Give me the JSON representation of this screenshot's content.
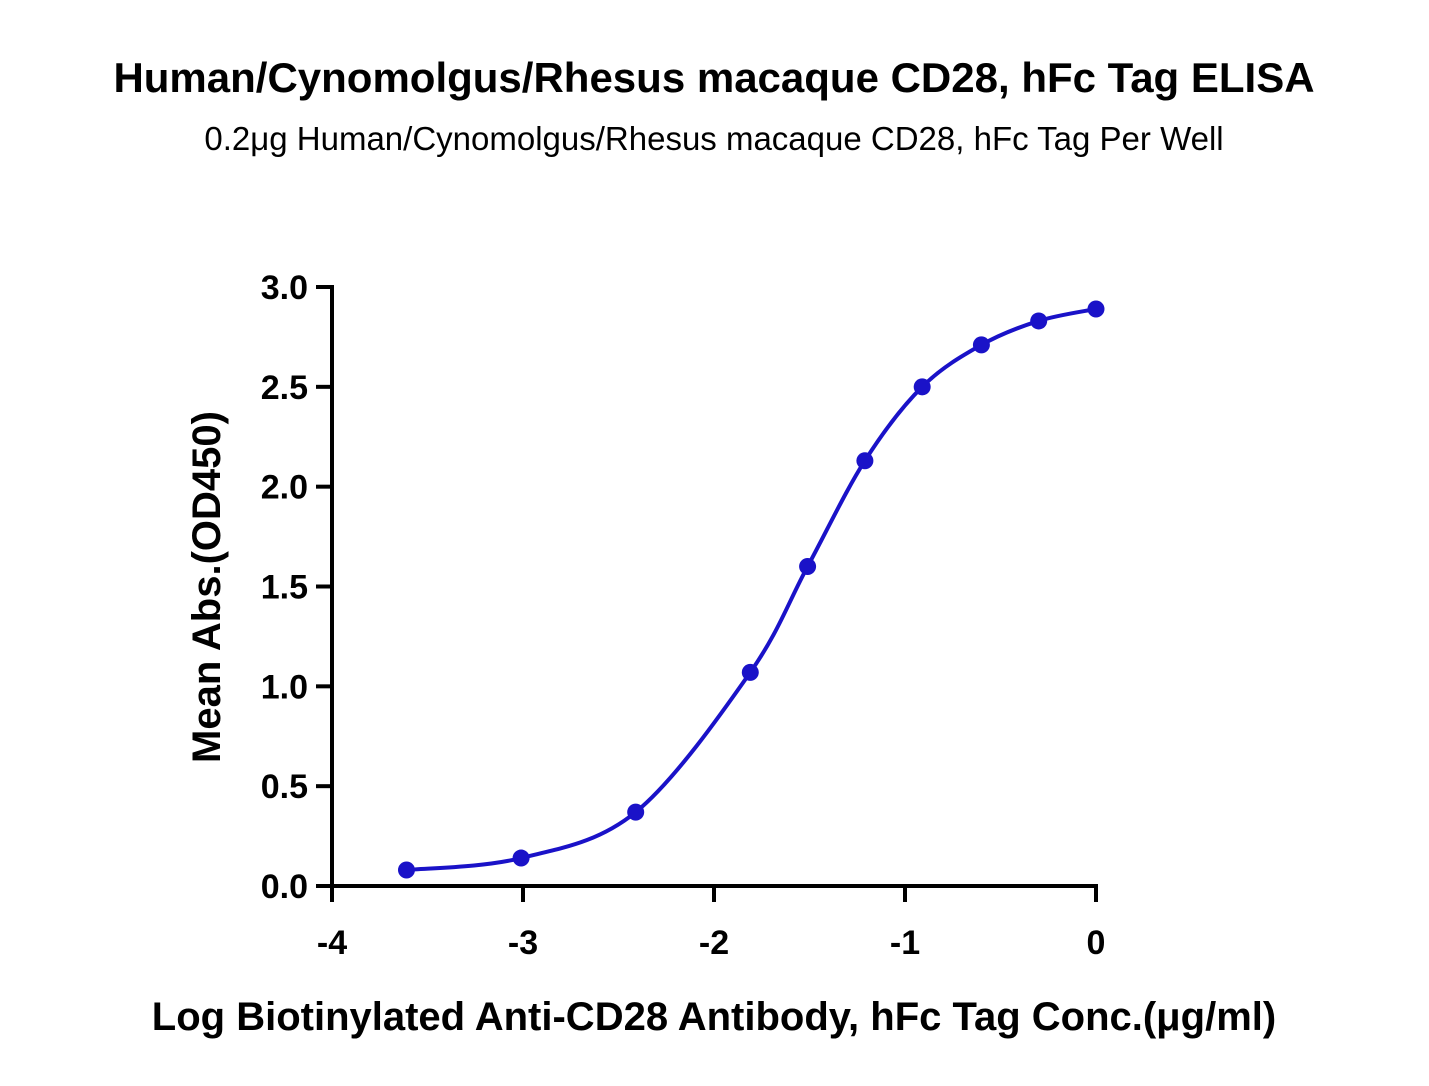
{
  "chart_data": {
    "type": "scatter",
    "title": "Human/Cynomolgus/Rhesus macaque CD28, hFc Tag ELISA",
    "subtitle": "0.2μg Human/Cynomolgus/Rhesus macaque CD28, hFc Tag Per Well",
    "xlabel": "Log Biotinylated Anti-CD28 Antibody, hFc Tag Conc.(μg/ml)",
    "ylabel": "Mean Abs.(OD450)",
    "xlim": [
      -4,
      0
    ],
    "ylim": [
      0,
      3.0
    ],
    "x_ticks": [
      "-4",
      "-3",
      "-2",
      "-1",
      "0"
    ],
    "y_ticks": [
      "0.0",
      "0.5",
      "1.0",
      "1.5",
      "2.0",
      "2.5",
      "3.0"
    ],
    "grid": false,
    "fit": "sigmoidal curve",
    "series": [
      {
        "color": "#1a12c8",
        "x": [
          -3.61,
          -3.01,
          -2.41,
          -1.81,
          -1.51,
          -1.21,
          -0.91,
          -0.6,
          -0.3,
          0.0
        ],
        "y": [
          0.08,
          0.14,
          0.37,
          1.07,
          1.6,
          2.13,
          2.5,
          2.71,
          2.83,
          2.89
        ]
      }
    ]
  }
}
